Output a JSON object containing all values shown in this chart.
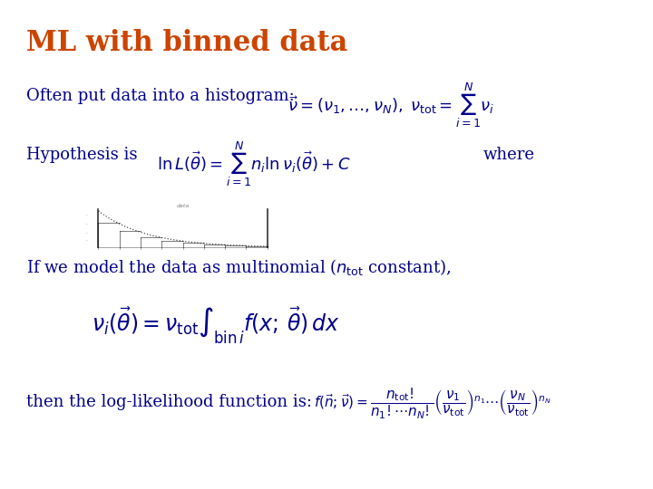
{
  "title": "ML with binned data",
  "title_color": "#cc4400",
  "title_fontsize": 22,
  "body_color": "#00008B",
  "bg_color": "#ffffff",
  "line1_text": "Often put data into a histogram:",
  "line2_text": "Hypothesis is",
  "line2_where": "where",
  "line4_text": "If we model the data as multinomial (",
  "line4_mid": "n",
  "line4_sub": "tot",
  "line4_end": " constant),",
  "line5_text": "then the log-likelihood function is:",
  "fs_body": 13,
  "fs_formula_large": 17,
  "fs_formula_small": 11
}
